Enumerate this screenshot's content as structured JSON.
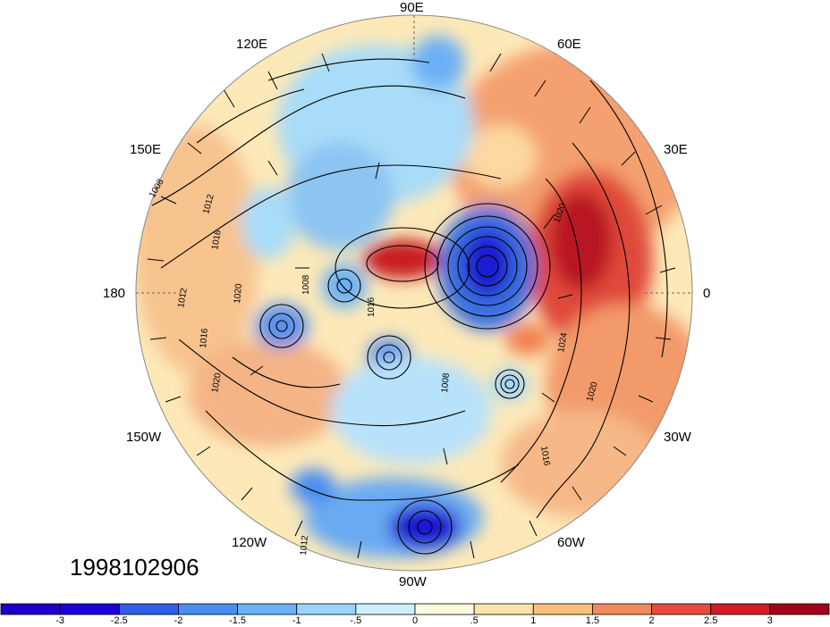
{
  "date_label": "1998102906",
  "longitude_labels": [
    "90E",
    "60E",
    "30E",
    "0",
    "30W",
    "60W",
    "90W",
    "120W",
    "150W",
    "180",
    "150E",
    "120E"
  ],
  "isobar_labels": [
    "1008",
    "1012",
    "1016",
    "1020",
    "1012",
    "1016",
    "1020",
    "1008",
    "1016",
    "1020",
    "1024",
    "1020",
    "1016",
    "1008",
    "1012"
  ],
  "colorbar": {
    "tick_labels": [
      "-3",
      "-2.5",
      "-2",
      "-1.5",
      "-1",
      "-.5",
      "0",
      ".5",
      "1",
      "1.5",
      "2",
      "2.5",
      "3"
    ],
    "colors": [
      "#1c00d8",
      "#2f5fe6",
      "#4a8cf0",
      "#6cb0f5",
      "#98d4fa",
      "#cdeefc",
      "#fffbe0",
      "#fde3a8",
      "#fabf80",
      "#f28a5d",
      "#e94a40",
      "#cf1c26",
      "#a0041c"
    ]
  },
  "colors": {
    "map_edge": "#888888",
    "contour": "#000000"
  }
}
